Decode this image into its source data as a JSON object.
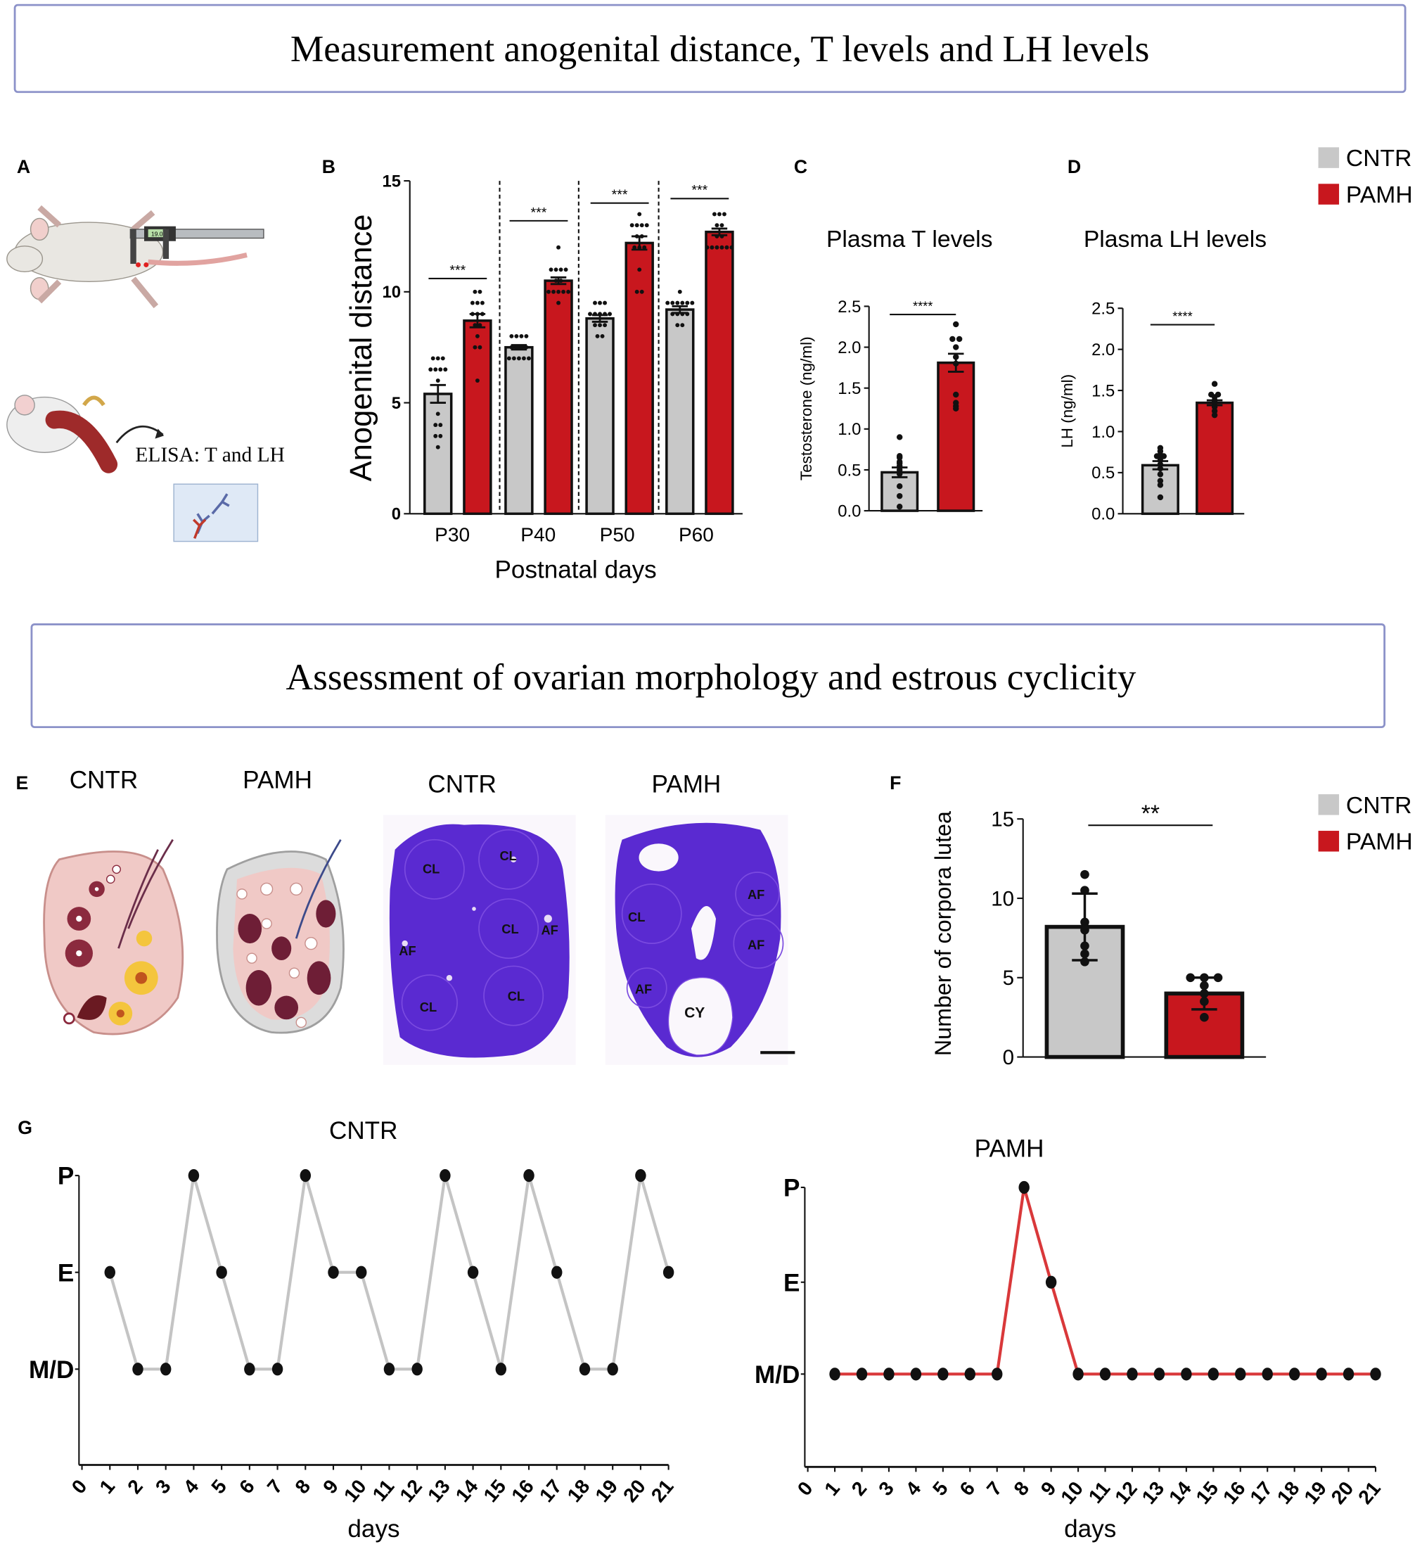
{
  "headers": {
    "top": "Measurement anogenital distance, T levels and LH levels",
    "middle": "Assessment of ovarian morphology and estrous cyclicity"
  },
  "panel_labels": {
    "A": "A",
    "B": "B",
    "C": "C",
    "D": "D",
    "E": "E",
    "F": "F",
    "G": "G"
  },
  "colors": {
    "cntr": "#c8c8c8",
    "pamh": "#c8171e",
    "box_border": "#8c92c9",
    "pamh_line": "#d9383a",
    "cntr_line": "#c4c4c4"
  },
  "legend": [
    {
      "label": "CNTR",
      "color": "#c8c8c8"
    },
    {
      "label": "PAMH",
      "color": "#c8171e"
    }
  ],
  "panel_a": {
    "elisa_text": "ELISA: T and LH",
    "caliper_display": "19.0"
  },
  "panel_e": {
    "illustration_labels": [
      "CNTR",
      "PAMH"
    ],
    "histology_labels": [
      "CNTR",
      "PAMH"
    ],
    "cntr_structures": [
      "CL",
      "CL",
      "CL",
      "AF",
      "AF",
      "CL",
      "CL"
    ],
    "pamh_structures": [
      "AF",
      "CL",
      "AF",
      "AF",
      "CY"
    ]
  },
  "chart_data": [
    {
      "id": "B",
      "type": "bar",
      "xlabel": "Postnatal days",
      "ylabel": "Anogenital distance",
      "ylim": [
        0,
        15
      ],
      "yticks": [
        "0",
        "5",
        "10",
        "15"
      ],
      "categories": [
        "P30",
        "P40",
        "P50",
        "P60"
      ],
      "series": [
        {
          "name": "CNTR",
          "values": [
            5.4,
            7.5,
            8.8,
            9.2
          ],
          "sem": [
            0.4,
            0.1,
            0.15,
            0.15
          ],
          "points": [
            [
              7,
              7,
              7,
              6.5,
              6.5,
              6.5,
              6.5,
              6,
              4.5,
              4,
              4,
              3.5,
              3.5,
              3
            ],
            [
              8,
              8,
              8,
              8,
              7.5,
              7.5,
              7.5,
              7.5,
              7,
              7,
              7,
              7,
              7
            ],
            [
              9.5,
              9.5,
              9.5,
              9,
              9,
              9,
              9,
              9,
              8.5,
              8.5,
              8.5,
              8,
              8
            ],
            [
              10,
              9.5,
              9.5,
              9.5,
              9.5,
              9.5,
              9.5,
              9,
              9,
              9,
              9,
              8.5,
              8.5
            ]
          ]
        },
        {
          "name": "PAMH",
          "values": [
            8.7,
            10.5,
            12.2,
            12.7
          ],
          "sem": [
            0.3,
            0.15,
            0.3,
            0.15
          ],
          "points": [
            [
              10,
              10,
              9.5,
              9.5,
              9.5,
              9,
              9,
              9,
              8.5,
              8.5,
              8,
              7.5,
              7.5,
              6
            ],
            [
              12,
              11,
              11,
              11,
              11,
              10.5,
              10.5,
              10,
              10,
              10,
              10,
              10,
              9.5
            ],
            [
              13.5,
              13,
              13,
              13,
              13,
              12.5,
              12.5,
              12,
              12,
              12,
              11,
              10,
              10
            ],
            [
              13.5,
              13.5,
              13.5,
              13,
              13,
              12.5,
              12.5,
              12,
              12,
              12,
              12,
              12,
              12
            ]
          ]
        }
      ],
      "significance": [
        {
          "label": "***",
          "y": 10.6
        },
        {
          "label": "***",
          "y": 13.2
        },
        {
          "label": "***",
          "y": 14.0
        },
        {
          "label": "***",
          "y": 14.2
        }
      ]
    },
    {
      "id": "C",
      "type": "bar",
      "title": "Plasma T levels",
      "ylabel": "Testosterone (ng/ml)",
      "ylim": [
        0,
        2.5
      ],
      "yticks": [
        "0.0",
        "0.5",
        "1.0",
        "1.5",
        "2.0",
        "2.5"
      ],
      "categories": [
        "CNTR",
        "PAMH"
      ],
      "values": [
        0.47,
        1.81
      ],
      "sem": [
        0.06,
        0.11
      ],
      "points": [
        [
          0.9,
          0.67,
          0.65,
          0.6,
          0.58,
          0.55,
          0.5,
          0.45,
          0.3,
          0.18,
          0.05
        ],
        [
          2.28,
          2.1,
          2.1,
          2.0,
          1.88,
          1.8,
          1.42,
          1.32,
          1.28,
          1.25
        ]
      ],
      "significance": {
        "label": "****",
        "y": 2.4
      }
    },
    {
      "id": "D",
      "type": "bar",
      "title": "Plasma LH  levels",
      "ylabel": "LH (ng/ml)",
      "ylim": [
        0,
        2.5
      ],
      "yticks": [
        "0.0",
        "0.5",
        "1.0",
        "1.5",
        "2.0",
        "2.5"
      ],
      "categories": [
        "CNTR",
        "PAMH"
      ],
      "values": [
        0.59,
        1.35
      ],
      "sem": [
        0.05,
        0.03
      ],
      "points": [
        [
          0.8,
          0.76,
          0.72,
          0.7,
          0.7,
          0.68,
          0.65,
          0.6,
          0.55,
          0.48,
          0.4,
          0.35,
          0.2
        ],
        [
          1.58,
          1.45,
          1.45,
          1.42,
          1.38,
          1.36,
          1.35,
          1.3,
          1.25,
          1.2
        ]
      ],
      "significance": {
        "label": "****",
        "y": 2.3
      }
    },
    {
      "id": "F",
      "type": "bar",
      "ylabel": "Number of corpora lutea",
      "ylim": [
        0,
        15
      ],
      "yticks": [
        "0",
        "5",
        "10",
        "15"
      ],
      "categories": [
        "CNTR",
        "PAMH"
      ],
      "values": [
        8.2,
        4.0
      ],
      "error": [
        2.1,
        1.0
      ],
      "points": [
        [
          11.5,
          10.5,
          8.5,
          8,
          7,
          6.5,
          6
        ],
        [
          5,
          5,
          5,
          4.5,
          4,
          3.5,
          2.5
        ]
      ],
      "significance": {
        "label": "**",
        "y": 14.6
      }
    },
    {
      "id": "G-CNTR",
      "type": "line",
      "title": "CNTR",
      "xlabel": "days",
      "ystages": [
        "M/D",
        "E",
        "P"
      ],
      "x": [
        1,
        2,
        3,
        4,
        5,
        6,
        7,
        8,
        9,
        10,
        11,
        12,
        13,
        14,
        15,
        16,
        17,
        18,
        19,
        20,
        21
      ],
      "y": [
        "E",
        "M/D",
        "M/D",
        "P",
        "E",
        "M/D",
        "M/D",
        "P",
        "E",
        "E",
        "M/D",
        "M/D",
        "P",
        "E",
        "M/D",
        "P",
        "E",
        "M/D",
        "M/D",
        "P",
        "E"
      ],
      "xticks": [
        "0",
        "1",
        "2",
        "3",
        "4",
        "5",
        "6",
        "7",
        "8",
        "9",
        "10",
        "11",
        "12",
        "13",
        "14",
        "15",
        "16",
        "17",
        "18",
        "19",
        "20",
        "21"
      ]
    },
    {
      "id": "G-PAMH",
      "type": "line",
      "title": "PAMH",
      "xlabel": "days",
      "ystages": [
        "M/D",
        "E",
        "P"
      ],
      "x": [
        1,
        2,
        3,
        4,
        5,
        6,
        7,
        8,
        9,
        10,
        11,
        12,
        13,
        14,
        15,
        16,
        17,
        18,
        19,
        20,
        21
      ],
      "y": [
        "M/D",
        "M/D",
        "M/D",
        "M/D",
        "M/D",
        "M/D",
        "M/D",
        "P",
        "E",
        "M/D",
        "M/D",
        "M/D",
        "M/D",
        "M/D",
        "M/D",
        "M/D",
        "M/D",
        "M/D",
        "M/D",
        "M/D",
        "M/D"
      ],
      "xticks": [
        "0",
        "1",
        "2",
        "3",
        "4",
        "5",
        "6",
        "7",
        "8",
        "9",
        "10",
        "11",
        "12",
        "13",
        "14",
        "15",
        "16",
        "17",
        "18",
        "19",
        "20",
        "21"
      ]
    }
  ]
}
